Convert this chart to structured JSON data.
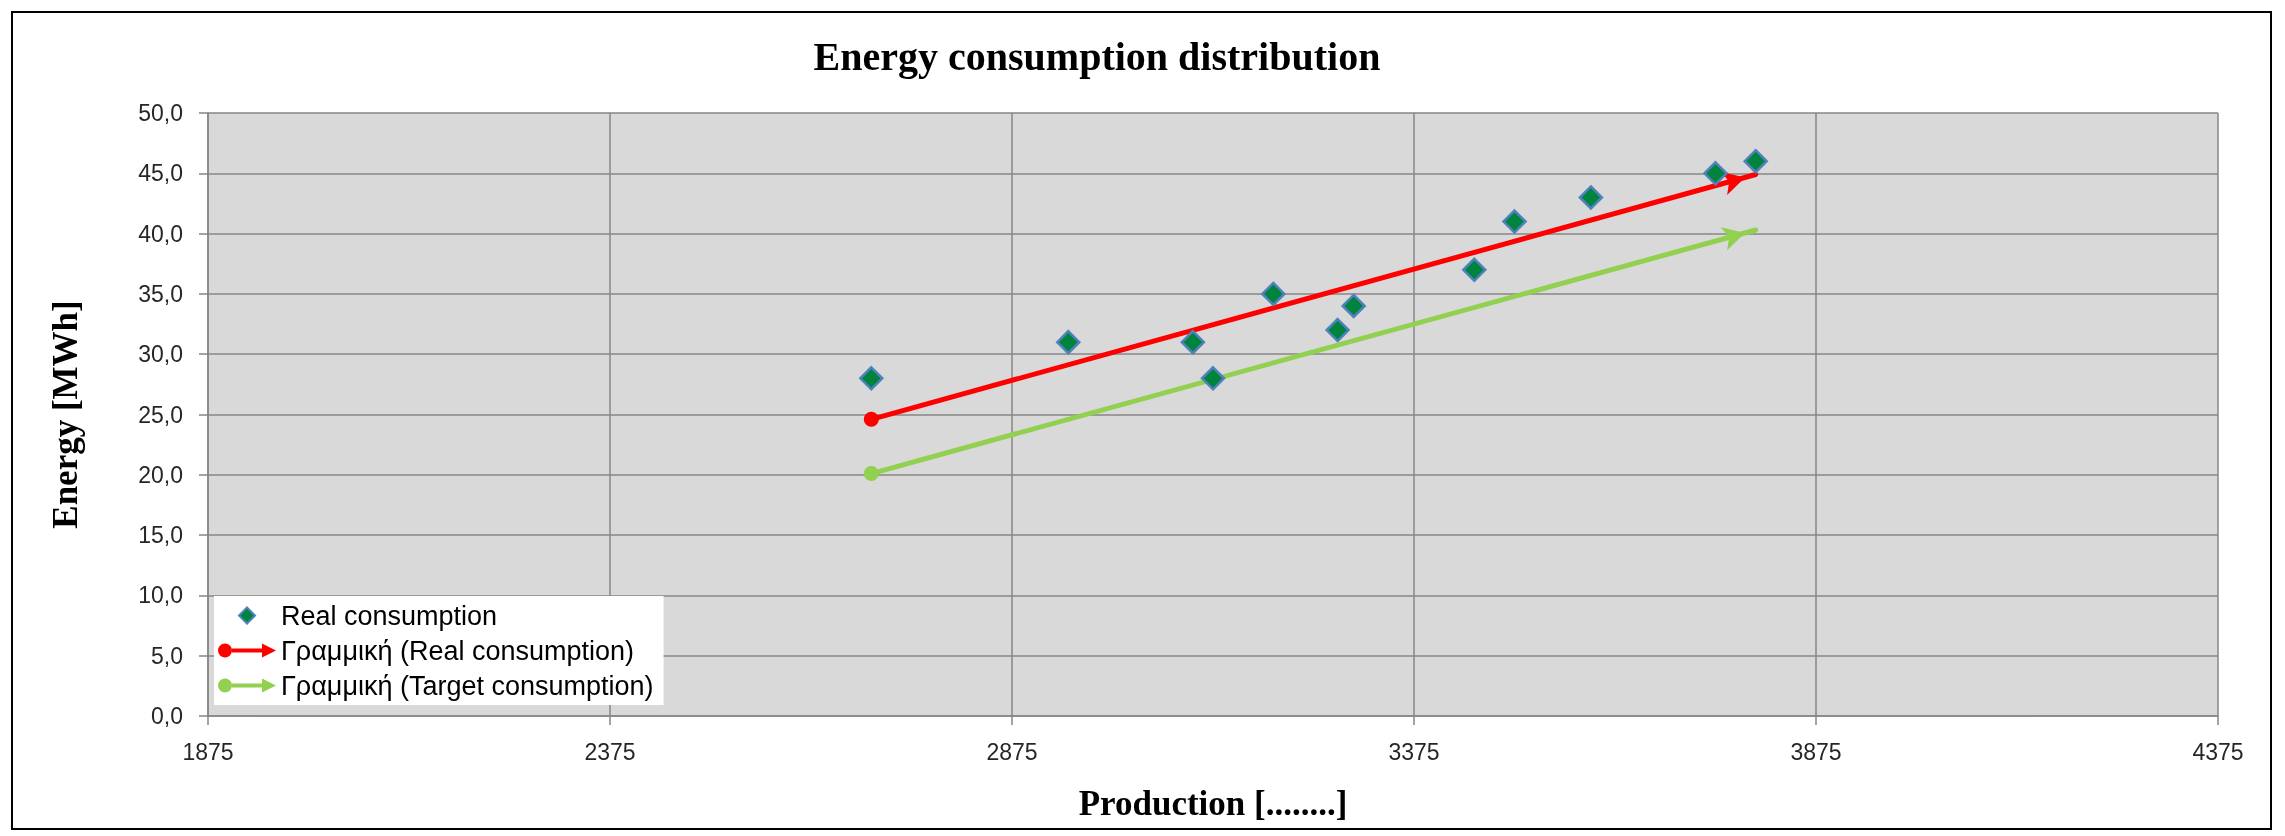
{
  "chart_data": {
    "type": "scatter",
    "title": "Energy consumption distribution",
    "xlabel": "Production [........]",
    "ylabel": "Energy [MWh]",
    "xlim": [
      1875,
      4375
    ],
    "xticks": [
      1875,
      2375,
      2875,
      3375,
      3875,
      4375
    ],
    "ylim": [
      0,
      50
    ],
    "yticks": [
      {
        "value": 0,
        "label": "0,0"
      },
      {
        "value": 5,
        "label": "5,0"
      },
      {
        "value": 10,
        "label": "10,0"
      },
      {
        "value": 15,
        "label": "15,0"
      },
      {
        "value": 20,
        "label": "20,0"
      },
      {
        "value": 25,
        "label": "25,0"
      },
      {
        "value": 30,
        "label": "30,0"
      },
      {
        "value": 35,
        "label": "35,0"
      },
      {
        "value": 40,
        "label": "40,0"
      },
      {
        "value": 45,
        "label": "45,0"
      },
      {
        "value": 50,
        "label": "50,0"
      }
    ],
    "grid": true,
    "legend": "bottom left",
    "series": [
      {
        "name": "Real consumption",
        "marker": "diamond",
        "color": "#00843d",
        "x": [
          2700,
          2945,
          3100,
          3125,
          3200,
          3280,
          3300,
          3450,
          3500,
          3595,
          3750,
          3800
        ],
        "values": [
          28,
          31,
          31,
          28,
          35,
          32,
          34,
          37,
          41,
          43,
          45,
          46
        ]
      },
      {
        "name": "Γραμμική (Real consumption)",
        "type": "line",
        "marker": "circle",
        "color": "#ff0000",
        "x": [
          2700,
          3800
        ],
        "values": [
          24.6,
          44.9
        ]
      },
      {
        "name": "Γραμμική (Target consumption)",
        "type": "line",
        "marker": "circle",
        "color": "#92d050",
        "x": [
          2700,
          3800
        ],
        "values": [
          20.1,
          40.3
        ]
      }
    ]
  }
}
